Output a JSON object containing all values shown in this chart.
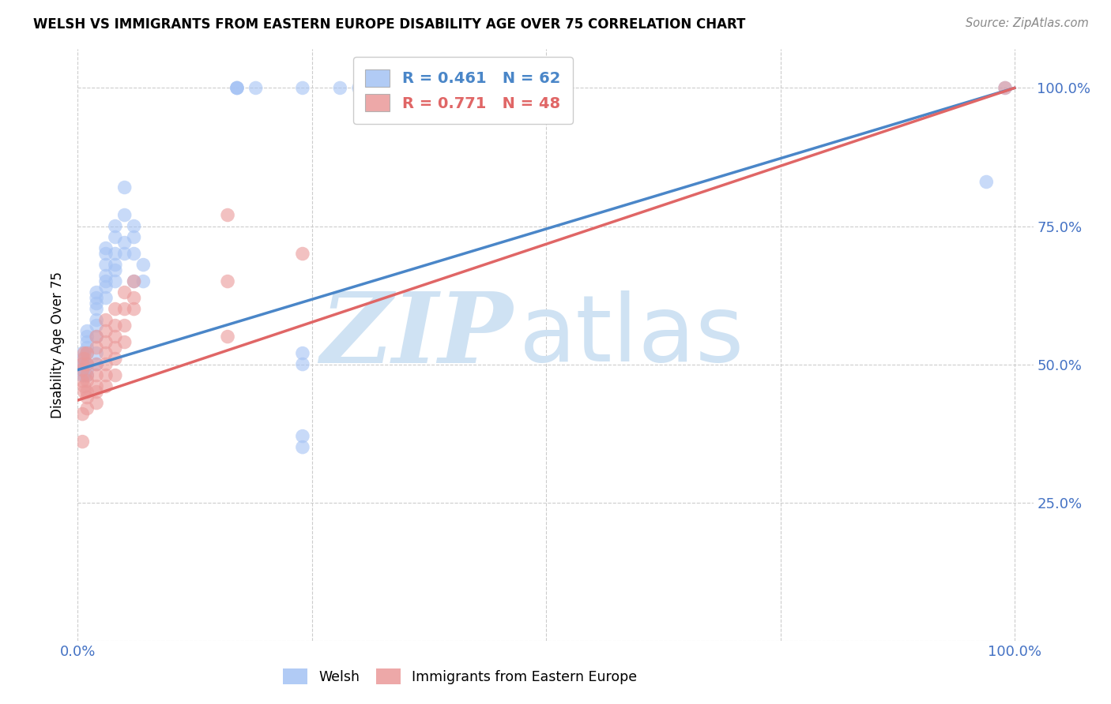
{
  "title": "WELSH VS IMMIGRANTS FROM EASTERN EUROPE DISABILITY AGE OVER 75 CORRELATION CHART",
  "source": "Source: ZipAtlas.com",
  "ylabel": "Disability Age Over 75",
  "blue_R": "R = 0.461",
  "blue_N": "N = 62",
  "pink_R": "R = 0.771",
  "pink_N": "N = 48",
  "blue_color": "#a4c2f4",
  "pink_color": "#ea9999",
  "blue_line_color": "#4a86c8",
  "pink_line_color": "#e06666",
  "watermark_ZIP_color": "#cfe2f3",
  "watermark_atlas_color": "#cfe2f3",
  "blue_scatter": [
    [
      0.005,
      0.48
    ],
    [
      0.005,
      0.5
    ],
    [
      0.005,
      0.49
    ],
    [
      0.005,
      0.51
    ],
    [
      0.005,
      0.52
    ],
    [
      0.005,
      0.5
    ],
    [
      0.007,
      0.48
    ],
    [
      0.01,
      0.5
    ],
    [
      0.01,
      0.53
    ],
    [
      0.01,
      0.54
    ],
    [
      0.01,
      0.55
    ],
    [
      0.01,
      0.56
    ],
    [
      0.01,
      0.52
    ],
    [
      0.01,
      0.5
    ],
    [
      0.01,
      0.49
    ],
    [
      0.01,
      0.48
    ],
    [
      0.02,
      0.6
    ],
    [
      0.02,
      0.62
    ],
    [
      0.02,
      0.61
    ],
    [
      0.02,
      0.58
    ],
    [
      0.02,
      0.63
    ],
    [
      0.02,
      0.55
    ],
    [
      0.02,
      0.57
    ],
    [
      0.02,
      0.52
    ],
    [
      0.02,
      0.5
    ],
    [
      0.03,
      0.7
    ],
    [
      0.03,
      0.71
    ],
    [
      0.03,
      0.68
    ],
    [
      0.03,
      0.65
    ],
    [
      0.03,
      0.64
    ],
    [
      0.03,
      0.66
    ],
    [
      0.03,
      0.62
    ],
    [
      0.04,
      0.75
    ],
    [
      0.04,
      0.73
    ],
    [
      0.04,
      0.7
    ],
    [
      0.04,
      0.68
    ],
    [
      0.04,
      0.67
    ],
    [
      0.04,
      0.65
    ],
    [
      0.05,
      0.82
    ],
    [
      0.05,
      0.77
    ],
    [
      0.05,
      0.72
    ],
    [
      0.05,
      0.7
    ],
    [
      0.06,
      0.75
    ],
    [
      0.06,
      0.73
    ],
    [
      0.06,
      0.7
    ],
    [
      0.06,
      0.65
    ],
    [
      0.07,
      0.68
    ],
    [
      0.07,
      0.65
    ],
    [
      0.17,
      1.0
    ],
    [
      0.17,
      1.0
    ],
    [
      0.17,
      1.0
    ],
    [
      0.19,
      1.0
    ],
    [
      0.24,
      1.0
    ],
    [
      0.28,
      1.0
    ],
    [
      0.24,
      0.52
    ],
    [
      0.24,
      0.5
    ],
    [
      0.24,
      0.37
    ],
    [
      0.24,
      0.35
    ],
    [
      0.97,
      0.83
    ],
    [
      0.99,
      1.0
    ],
    [
      0.3,
      1.0
    ],
    [
      0.33,
      1.0
    ]
  ],
  "pink_scatter": [
    [
      0.005,
      0.47
    ],
    [
      0.005,
      0.49
    ],
    [
      0.005,
      0.5
    ],
    [
      0.007,
      0.51
    ],
    [
      0.007,
      0.52
    ],
    [
      0.007,
      0.46
    ],
    [
      0.007,
      0.45
    ],
    [
      0.01,
      0.5
    ],
    [
      0.01,
      0.52
    ],
    [
      0.01,
      0.48
    ],
    [
      0.01,
      0.47
    ],
    [
      0.01,
      0.45
    ],
    [
      0.01,
      0.44
    ],
    [
      0.01,
      0.42
    ],
    [
      0.005,
      0.41
    ],
    [
      0.02,
      0.55
    ],
    [
      0.02,
      0.53
    ],
    [
      0.02,
      0.5
    ],
    [
      0.02,
      0.48
    ],
    [
      0.02,
      0.46
    ],
    [
      0.02,
      0.45
    ],
    [
      0.02,
      0.43
    ],
    [
      0.03,
      0.58
    ],
    [
      0.03,
      0.56
    ],
    [
      0.03,
      0.54
    ],
    [
      0.03,
      0.52
    ],
    [
      0.03,
      0.5
    ],
    [
      0.03,
      0.48
    ],
    [
      0.03,
      0.46
    ],
    [
      0.04,
      0.6
    ],
    [
      0.04,
      0.57
    ],
    [
      0.04,
      0.55
    ],
    [
      0.04,
      0.53
    ],
    [
      0.04,
      0.51
    ],
    [
      0.04,
      0.48
    ],
    [
      0.05,
      0.63
    ],
    [
      0.05,
      0.6
    ],
    [
      0.05,
      0.57
    ],
    [
      0.05,
      0.54
    ],
    [
      0.06,
      0.65
    ],
    [
      0.06,
      0.62
    ],
    [
      0.06,
      0.6
    ],
    [
      0.16,
      0.77
    ],
    [
      0.16,
      0.65
    ],
    [
      0.16,
      0.55
    ],
    [
      0.24,
      0.7
    ],
    [
      0.99,
      1.0
    ],
    [
      0.005,
      0.36
    ]
  ],
  "blue_line": [
    [
      0.0,
      0.49
    ],
    [
      1.0,
      1.0
    ]
  ],
  "pink_line": [
    [
      0.0,
      0.435
    ],
    [
      1.0,
      1.0
    ]
  ],
  "xlim": [
    0.0,
    1.02
  ],
  "ylim": [
    0.0,
    1.07
  ],
  "xtick_positions": [
    0,
    0.25,
    0.5,
    0.75,
    1.0
  ],
  "xticklabels": [
    "0.0%",
    "",
    "",
    "",
    "100.0%"
  ],
  "ytick_positions": [
    0,
    0.25,
    0.5,
    0.75,
    1.0
  ],
  "ytick_labels_right": [
    "",
    "25.0%",
    "50.0%",
    "75.0%",
    "100.0%"
  ],
  "tick_color": "#4472c4",
  "grid_color": "#cccccc",
  "figsize": [
    14.06,
    8.92
  ],
  "dpi": 100
}
